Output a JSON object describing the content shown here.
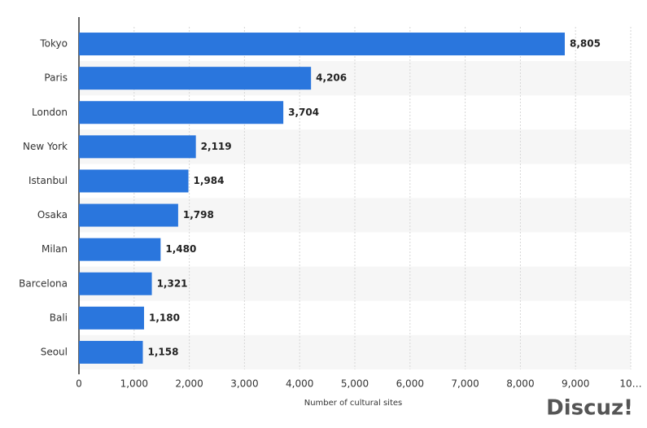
{
  "chart_data": {
    "type": "bar",
    "orientation": "horizontal",
    "x_label": "Number of cultural sites",
    "categories": [
      "Tokyo",
      "Paris",
      "London",
      "New York",
      "Istanbul",
      "Osaka",
      "Milan",
      "Barcelona",
      "Bali",
      "Seoul"
    ],
    "values": [
      8805,
      4206,
      3704,
      2119,
      1984,
      1798,
      1480,
      1321,
      1180,
      1158
    ],
    "value_labels": [
      "8,805",
      "4,206",
      "3,704",
      "2,119",
      "1,984",
      "1,798",
      "1,480",
      "1,321",
      "1,180",
      "1,158"
    ],
    "color": "#2a76dd",
    "xlim": [
      0,
      10000
    ],
    "xticks": [
      0,
      {
        "value": 1000,
        "label": "1,000"
      },
      {
        "value": 2000,
        "label": "2,000"
      },
      {
        "value": 3000,
        "label": "3,000"
      },
      {
        "value": 4000,
        "label": "4,000"
      },
      {
        "value": 5000,
        "label": "5,000"
      },
      {
        "value": 6000,
        "label": "6,000"
      },
      {
        "value": 7000,
        "label": "7,000"
      },
      {
        "value": 8000,
        "label": "8,000"
      },
      {
        "value": 9000,
        "label": "9,000"
      },
      {
        "value": 10000,
        "label": "10…"
      }
    ],
    "grid": true,
    "watermark": "Discuz!"
  }
}
